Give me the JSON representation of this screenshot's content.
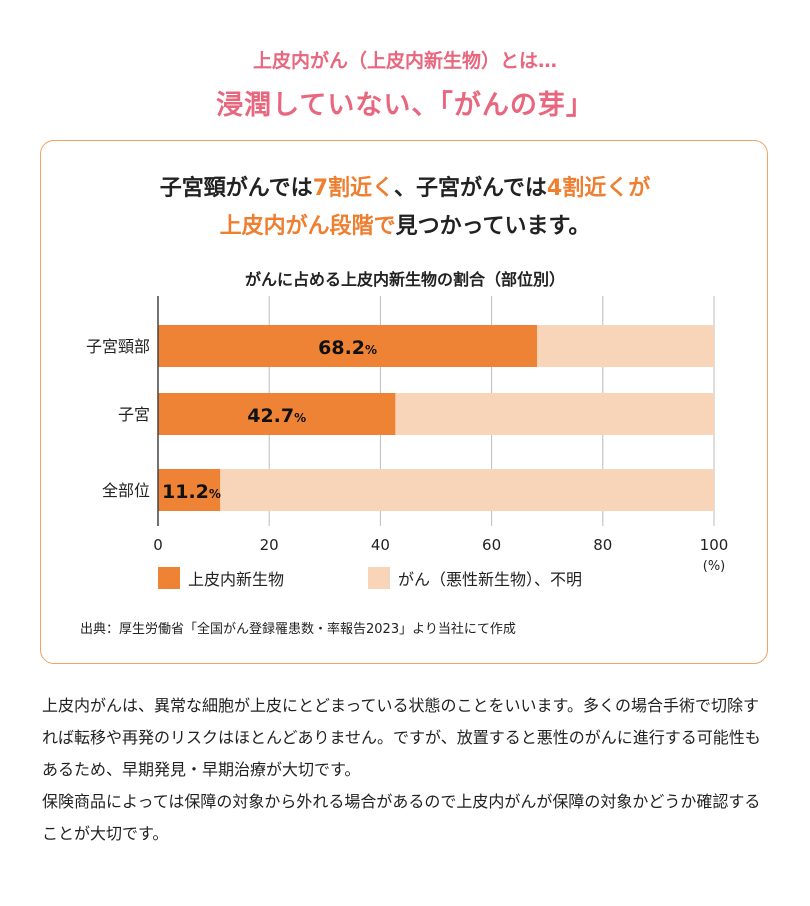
{
  "heading": {
    "line1": "上皮内がん（上皮内新生物）とは…",
    "line2": "浸潤していない、「がんの芽」"
  },
  "lead": {
    "l1_a": "子宮頸がんでは",
    "l1_b": "7割近く",
    "l1_c": "、子宮がんでは",
    "l1_d": "4割近くが",
    "l2_a": "上皮内がん段階で",
    "l2_b": "見つかっています。"
  },
  "chart_data": {
    "type": "bar",
    "orientation": "horizontal",
    "stacked": true,
    "title": "がんに占める上皮内新生物の割合（部位別）",
    "categories": [
      "子宮頸部",
      "子宮",
      "全部位"
    ],
    "series": [
      {
        "name": "上皮内新生物",
        "values": [
          68.2,
          42.7,
          11.2
        ],
        "color": "#ee8336"
      },
      {
        "name": "がん（悪性新生物）、不明",
        "values": [
          31.8,
          57.3,
          88.8
        ],
        "color": "#f8d4b9"
      }
    ],
    "value_labels": [
      {
        "number": "68.2",
        "unit": "%"
      },
      {
        "number": "42.7",
        "unit": "%"
      },
      {
        "number": "11.2",
        "unit": "%"
      }
    ],
    "xlim": [
      0,
      100
    ],
    "xticks": [
      "0",
      "20",
      "40",
      "60",
      "80",
      "100"
    ],
    "xunit": "(%)",
    "grid": true,
    "legend_position": "bottom"
  },
  "source": "出典：厚生労働省「全国がん登録罹患数・率報告2023」より当社にて作成",
  "body_paragraphs": [
    "上皮内がんは、異常な細胞が上皮にとどまっている状態のことをいいます。多くの場合手術で切除すれば転移や再発のリスクはほとんどありません。ですが、放置すると悪性のがんに進行する可能性もあるため、早期発見・早期治療が大切です。",
    "保険商品によっては保障の対象から外れる場合があるので上皮内がんが保障の対象かどうか確認することが大切です。"
  ]
}
